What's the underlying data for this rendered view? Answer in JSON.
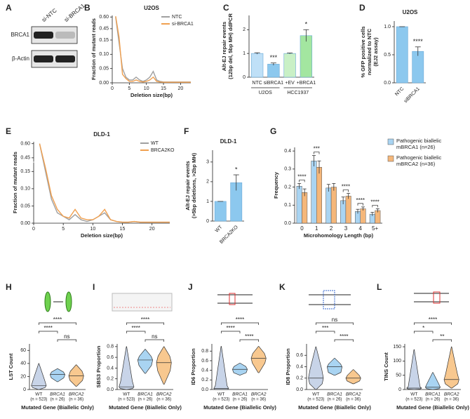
{
  "chart_data": [
    {
      "type": "blot",
      "panel": "A",
      "lanes": [
        "si-NTC",
        "si-BRCA1"
      ],
      "rows": [
        "BRCA1",
        "β-Actin"
      ]
    },
    {
      "type": "line",
      "panel": "B",
      "title": "U2OS",
      "xlabel": "Deletion size(bp)",
      "ylabel": "Fraction of mutant reads",
      "x": [
        1,
        2,
        3,
        4,
        5,
        6,
        7,
        8,
        9,
        10,
        11,
        12,
        13,
        14,
        15,
        16,
        17,
        18,
        19,
        20,
        21,
        22,
        23
      ],
      "xlim": [
        0,
        23
      ],
      "xticks": [
        0,
        5,
        10,
        15,
        20
      ],
      "ylim": [
        0,
        0.62
      ],
      "ybreak": [
        0.17,
        0.43
      ],
      "yticks": [
        {
          "value": 0,
          "label": "0.00"
        },
        0.05,
        {
          "value": 0.1,
          "label": "0.10"
        },
        0.15,
        0.45,
        {
          "value": 0.6,
          "label": "0.60"
        }
      ],
      "series": [
        {
          "name": "NTC",
          "color": "#a0a0a0",
          "values": [
            0.6,
            0.14,
            0.05,
            0.02,
            0.01,
            0.01,
            0.02,
            0.01,
            0.005,
            0.01,
            0.02,
            0.04,
            0.01,
            0.005,
            0.003,
            0.003,
            0.003,
            0.003,
            0.003,
            0.003,
            0.003,
            0.003,
            0.003
          ]
        },
        {
          "name": "si-BRCA1",
          "color": "#f0a050",
          "values": [
            0.61,
            0.16,
            0.03,
            0.015,
            0.005,
            0.005,
            0.01,
            0.005,
            0.003,
            0.005,
            0.01,
            0.02,
            0.005,
            0.003,
            0.002,
            0.002,
            0.002,
            0.002,
            0.002,
            0.002,
            0.002,
            0.002,
            0.002
          ]
        }
      ]
    },
    {
      "type": "bar",
      "panel": "C",
      "ylabel": [
        "Alt-EJ repair events",
        "(12bp del, 5bp MH) ddPCR"
      ],
      "categories": [
        "NTC",
        "siBRCA1",
        "+EV",
        "+BRCA1"
      ],
      "groups": [
        "U2OS",
        "HCC1937"
      ],
      "values": [
        1,
        0.55,
        1,
        1.75
      ],
      "errors": [
        0.03,
        0.05,
        0.02,
        0.25
      ],
      "significance": [
        null,
        "***",
        null,
        "*"
      ],
      "colors": [
        "#bfe0f7",
        "#8cc8ee",
        "#c9f0c6",
        "#a3e6a0"
      ],
      "ylim": [
        0,
        2.6
      ],
      "yticks": [
        0,
        1,
        2
      ]
    },
    {
      "type": "bar",
      "panel": "D",
      "title": "U2OS",
      "ylabel": [
        "% GFP positive cells",
        "normalized to NTC",
        "(EJ2 assay)"
      ],
      "categories": [
        "NTC",
        "siBRCA1"
      ],
      "values": [
        1,
        0.56
      ],
      "errors": [
        0,
        0.08
      ],
      "significance": [
        null,
        "****"
      ],
      "colors": [
        "#8cc8ee",
        "#8cc8ee"
      ],
      "ylim": [
        0,
        1.1
      ],
      "yticks": [
        {
          "value": 0,
          "label": "0.0"
        },
        0.5,
        {
          "value": 1,
          "label": "1.0"
        }
      ]
    },
    {
      "type": "line",
      "panel": "E",
      "title": "DLD-1",
      "xlabel": "Deletion size(bp)",
      "ylabel": "Fraction of mutant reads",
      "x": [
        1,
        2,
        3,
        4,
        5,
        6,
        7,
        8,
        9,
        10,
        11,
        12,
        13,
        14,
        15,
        16,
        17,
        18,
        19,
        20,
        21,
        22,
        23
      ],
      "xlim": [
        0,
        23
      ],
      "xticks": [
        0,
        5,
        10,
        15,
        20
      ],
      "ylim": [
        0,
        0.62
      ],
      "ybreak": [
        0.17,
        0.43
      ],
      "yticks": [
        {
          "value": 0,
          "label": "0.00"
        },
        0.05,
        {
          "value": 0.1,
          "label": "0.10"
        },
        0.15,
        0.45,
        {
          "value": 0.6,
          "label": "0.60"
        }
      ],
      "series": [
        {
          "name": "WT",
          "color": "#a0a0a0",
          "values": [
            0.6,
            0.15,
            0.07,
            0.03,
            0.02,
            0.01,
            0.025,
            0.01,
            0.005,
            0.01,
            0.02,
            0.03,
            0.01,
            0.005,
            0.003,
            0.003,
            0.005,
            0.003,
            0.003,
            0.003,
            0.003,
            0.003,
            0.003
          ]
        },
        {
          "name": "BRCA2KO",
          "color": "#f0a050",
          "values": [
            0.6,
            0.16,
            0.08,
            0.04,
            0.02,
            0.015,
            0.04,
            0.015,
            0.01,
            0.01,
            0.02,
            0.04,
            0.01,
            0.005,
            0.003,
            0.003,
            0.005,
            0.003,
            0.003,
            0.003,
            0.003,
            0.003,
            0.003
          ]
        }
      ]
    },
    {
      "type": "bar",
      "panel": "F",
      "title": "DLD-1",
      "ylabel": [
        "Alt-EJ repair events",
        "(>5bp deletions, >2bp MH)"
      ],
      "categories": [
        "WT",
        "BRCA2KO"
      ],
      "values": [
        1,
        1.95
      ],
      "errors": [
        0,
        0.4
      ],
      "significance": [
        null,
        "*"
      ],
      "colors": [
        "#8cc8ee",
        "#8cc8ee"
      ],
      "ylim": [
        0,
        3.6
      ],
      "yticks": [
        0,
        1,
        2,
        3
      ]
    },
    {
      "type": "grouped_bar",
      "panel": "G",
      "xlabel": "Microhomology Length (bp)",
      "ylabel": "Frequency",
      "categories": [
        "0",
        "1",
        "2",
        "3",
        "4",
        "5+"
      ],
      "significance": [
        "****",
        "***",
        null,
        "****",
        "****",
        "****"
      ],
      "ylim": [
        0,
        0.42
      ],
      "yticks": [
        {
          "value": 0,
          "label": "0.0"
        },
        0.1,
        0.2,
        0.3,
        0.4
      ],
      "series": [
        {
          "name": "Pathogenic biallelic mBRCA1 (n=26)",
          "color": "#a9d4f2",
          "values": [
            0.205,
            0.345,
            0.195,
            0.125,
            0.065,
            0.05
          ],
          "errors": [
            0.015,
            0.03,
            0.02,
            0.02,
            0.012,
            0.01
          ]
        },
        {
          "name": "Pathogenic biallelic mBRCA2 (n=36)",
          "color": "#f5b77a",
          "values": [
            0.17,
            0.31,
            0.2,
            0.15,
            0.08,
            0.07
          ],
          "errors": [
            0.02,
            0.035,
            0.02,
            0.015,
            0.01,
            0.01
          ]
        }
      ]
    },
    {
      "type": "violin",
      "panel": "H",
      "xlabel": "Mutated Gene (Biallelic Only)",
      "ylabel": "LST Count",
      "categories": [
        "WT",
        "BRCA1",
        "BRCA2"
      ],
      "category_notes": [
        "(n = 523)",
        "(n = 26)",
        "(n = 36)"
      ],
      "colors": [
        "#c8d4e8",
        "#a9d4f2",
        "#f8c88f"
      ],
      "ylim": [
        0,
        70
      ],
      "yticks": [
        0,
        20,
        40,
        60
      ],
      "stats": [
        {
          "min": 0,
          "q1": 3,
          "median": 6,
          "q3": 14,
          "max": 40
        },
        {
          "min": 12,
          "q1": 18,
          "median": 23,
          "q3": 27,
          "max": 32
        },
        {
          "min": 5,
          "q1": 14,
          "median": 21,
          "q3": 28,
          "max": 38
        }
      ],
      "comparisons": [
        {
          "pair": [
            0,
            2
          ],
          "label": "****"
        },
        {
          "pair": [
            0,
            1
          ],
          "label": "****"
        },
        {
          "pair": [
            1,
            2
          ],
          "label": "ns"
        }
      ]
    },
    {
      "type": "violin",
      "panel": "I",
      "xlabel": "Mutated Gene (Biallelic Only)",
      "ylabel": "SBS3 Proportion",
      "categories": [
        "WT",
        "BRCA1",
        "BRCA2"
      ],
      "category_notes": [
        "(n = 523)",
        "(n = 26)",
        "(n = 36)"
      ],
      "colors": [
        "#c8d4e8",
        "#a9d4f2",
        "#f8c88f"
      ],
      "ylim": [
        0,
        0.85
      ],
      "yticks": [
        {
          "value": 0,
          "label": "0.0"
        },
        0.2,
        0.4,
        0.6,
        0.8
      ],
      "stats": [
        {
          "min": 0,
          "q1": 0.02,
          "median": 0.05,
          "q3": 0.15,
          "max": 0.8
        },
        {
          "min": 0.3,
          "q1": 0.45,
          "median": 0.55,
          "q3": 0.62,
          "max": 0.75
        },
        {
          "min": 0.1,
          "q1": 0.35,
          "median": 0.5,
          "q3": 0.62,
          "max": 0.8
        }
      ],
      "comparisons": [
        {
          "pair": [
            0,
            2
          ],
          "label": "****"
        },
        {
          "pair": [
            0,
            1
          ],
          "label": "****"
        },
        {
          "pair": [
            1,
            2
          ],
          "label": "ns"
        }
      ]
    },
    {
      "type": "violin",
      "panel": "J",
      "xlabel": "Mutated Gene (Biallelic Only)",
      "ylabel": "ID6 Proportion",
      "categories": [
        "WT",
        "BRCA1",
        "BRCA2"
      ],
      "category_notes": [
        "(n = 523)",
        "(n = 26)",
        "(n = 36)"
      ],
      "colors": [
        "#c8d4e8",
        "#a9d4f2",
        "#f8c88f"
      ],
      "ylim": [
        0,
        0.95
      ],
      "yticks": [
        {
          "value": 0,
          "label": "0.0"
        },
        0.2,
        0.4,
        0.6,
        0.8
      ],
      "stats": [
        {
          "min": 0,
          "q1": 0,
          "median": 0.02,
          "q3": 0.08,
          "max": 0.9
        },
        {
          "min": 0.3,
          "q1": 0.35,
          "median": 0.42,
          "q3": 0.48,
          "max": 0.55
        },
        {
          "min": 0.35,
          "q1": 0.55,
          "median": 0.65,
          "q3": 0.75,
          "max": 0.9
        }
      ],
      "comparisons": [
        {
          "pair": [
            0,
            2
          ],
          "label": "****"
        },
        {
          "pair": [
            0,
            1
          ],
          "label": "****"
        },
        {
          "pair": [
            1,
            2
          ],
          "label": "****"
        }
      ]
    },
    {
      "type": "violin",
      "panel": "K",
      "xlabel": "Mutated Gene (Biallelic Only)",
      "ylabel": "ID8 Proportion",
      "categories": [
        "WT",
        "BRCA1",
        "BRCA2"
      ],
      "category_notes": [
        "(n = 523)",
        "(n = 26)",
        "(n = 36)"
      ],
      "colors": [
        "#c8d4e8",
        "#a9d4f2",
        "#f8c88f"
      ],
      "ylim": [
        0,
        0.8
      ],
      "yticks": [
        {
          "value": 0,
          "label": "0.0"
        },
        0.2,
        0.4,
        0.6
      ],
      "stats": [
        {
          "min": 0,
          "q1": 0.1,
          "median": 0.2,
          "q3": 0.35,
          "max": 0.75
        },
        {
          "min": 0.25,
          "q1": 0.3,
          "median": 0.4,
          "q3": 0.45,
          "max": 0.55
        },
        {
          "min": 0.1,
          "q1": 0.15,
          "median": 0.2,
          "q3": 0.25,
          "max": 0.35
        }
      ],
      "comparisons": [
        {
          "pair": [
            0,
            2
          ],
          "label": "ns"
        },
        {
          "pair": [
            0,
            1
          ],
          "label": "***"
        },
        {
          "pair": [
            1,
            2
          ],
          "label": "****"
        }
      ]
    },
    {
      "type": "violin",
      "panel": "L",
      "xlabel": "Mutated Gene (Biallelic Only)",
      "ylabel": "TINS Count",
      "categories": [
        "WT",
        "BRCA1",
        "BRCA2"
      ],
      "category_notes": [
        "(n = 523)",
        "(n = 26)",
        "(n = 36)"
      ],
      "colors": [
        "#c8d4e8",
        "#a9d4f2",
        "#f8c88f"
      ],
      "ylim": [
        0,
        160
      ],
      "yticks": [
        0,
        50,
        100,
        150
      ],
      "stats": [
        {
          "min": 0,
          "q1": 2,
          "median": 5,
          "q3": 10,
          "max": 140
        },
        {
          "min": 0,
          "q1": 3,
          "median": 8,
          "q3": 20,
          "max": 60
        },
        {
          "min": 5,
          "q1": 20,
          "median": 35,
          "q3": 55,
          "max": 150
        }
      ],
      "comparisons": [
        {
          "pair": [
            0,
            2
          ],
          "label": "****"
        },
        {
          "pair": [
            0,
            1
          ],
          "label": "*"
        },
        {
          "pair": [
            1,
            2
          ],
          "label": "**"
        }
      ]
    }
  ]
}
